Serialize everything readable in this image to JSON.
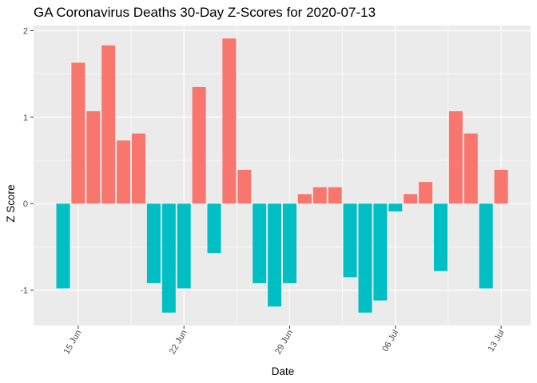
{
  "chart_data": {
    "type": "bar",
    "title": "GA Coronavirus Deaths 30-Day Z-Scores for 2020-07-13",
    "xlabel": "Date",
    "ylabel": "Z Score",
    "x": [
      "2020-06-14",
      "2020-06-15",
      "2020-06-16",
      "2020-06-17",
      "2020-06-18",
      "2020-06-19",
      "2020-06-20",
      "2020-06-21",
      "2020-06-22",
      "2020-06-23",
      "2020-06-24",
      "2020-06-25",
      "2020-06-26",
      "2020-06-27",
      "2020-06-28",
      "2020-06-29",
      "2020-06-30",
      "2020-07-01",
      "2020-07-02",
      "2020-07-03",
      "2020-07-04",
      "2020-07-05",
      "2020-07-06",
      "2020-07-07",
      "2020-07-08",
      "2020-07-09",
      "2020-07-10",
      "2020-07-11",
      "2020-07-12",
      "2020-07-13"
    ],
    "values": [
      -0.98,
      1.63,
      1.07,
      1.83,
      0.73,
      0.81,
      -0.92,
      -1.26,
      -0.98,
      1.35,
      -0.57,
      1.91,
      0.39,
      -0.92,
      -1.19,
      -0.92,
      0.11,
      0.19,
      0.19,
      -0.85,
      -1.26,
      -1.12,
      -0.09,
      0.11,
      0.25,
      -0.78,
      1.07,
      0.81,
      -0.98,
      0.39
    ],
    "x_ticks": [
      "15 Jun",
      "22 Jun",
      "29 Jun",
      "06 Jul",
      "13 Jul"
    ],
    "x_tick_dates": [
      "2020-06-15",
      "2020-06-22",
      "2020-06-29",
      "2020-07-06",
      "2020-07-13"
    ],
    "y_ticks": [
      -1,
      0,
      1,
      2
    ],
    "ylim": [
      -1.41,
      2.06
    ],
    "grid": true,
    "legend": "none",
    "colors": {
      "positive": "#F8766D",
      "negative": "#00BFC4",
      "panel": "#EBEBEB",
      "grid": "#FFFFFF"
    }
  }
}
